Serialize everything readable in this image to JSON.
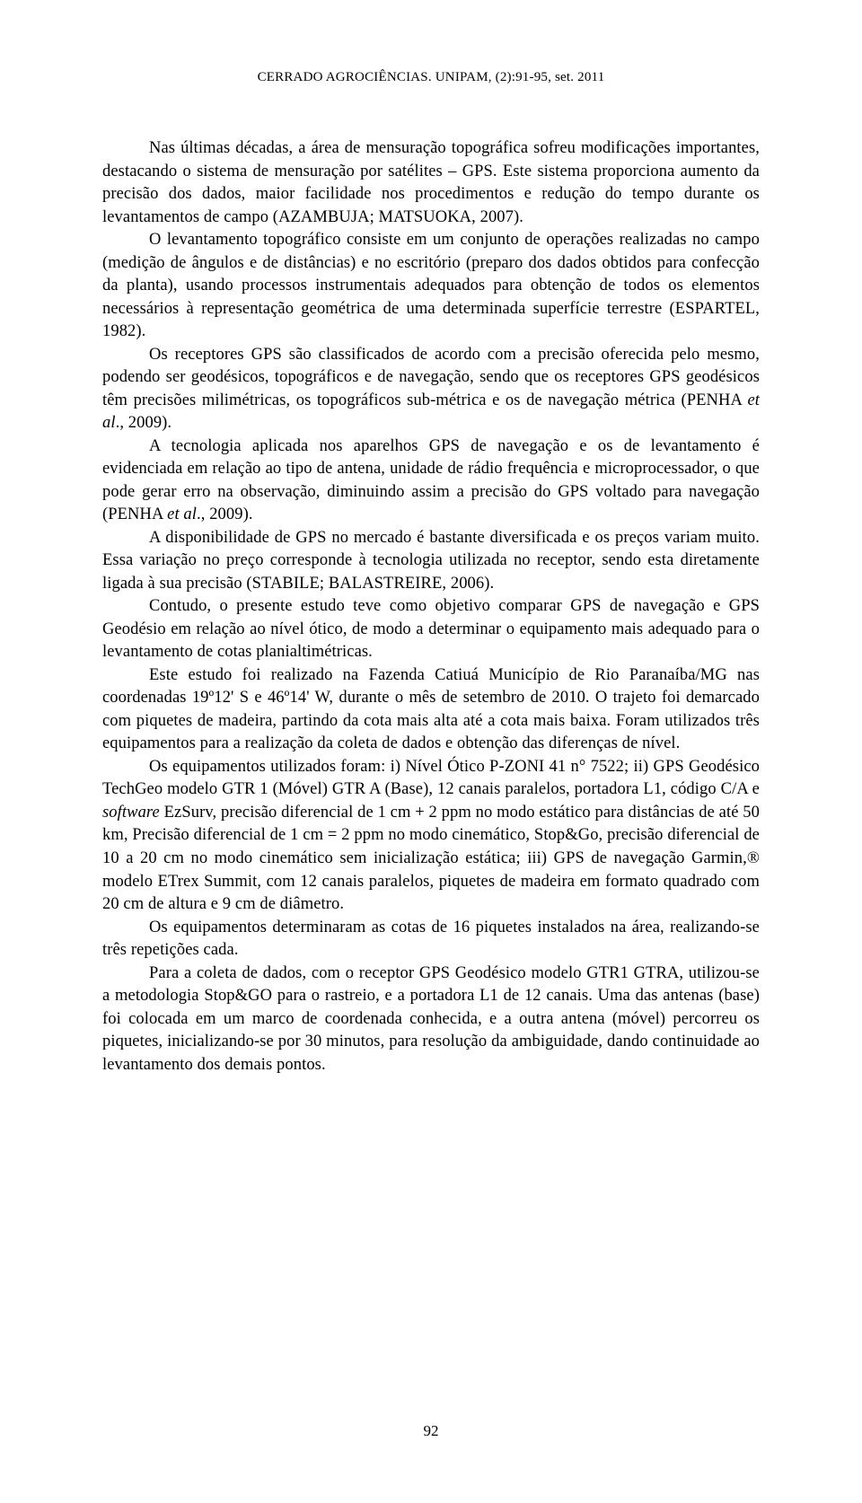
{
  "header": {
    "text": "CERRADO AGROCIÊNCIAS. UNIPAM, (2):91-95, set. 2011"
  },
  "paragraphs": {
    "p1": "Nas últimas décadas, a área de mensuração topográfica sofreu modificações importantes, destacando o sistema de mensuração por satélites – GPS. Este sistema proporciona aumento da precisão dos dados, maior facilidade nos procedimentos e redução do tempo durante os levantamentos de campo (AZAMBUJA; MATSUOKA, 2007).",
    "p2": "O levantamento topográfico consiste em um conjunto de operações realizadas no campo (medição de ângulos e de distâncias) e no escritório (preparo dos dados obtidos para confecção da planta), usando processos instrumentais adequados para obtenção de todos os elementos necessários à representação geométrica de uma determinada superfície terrestre (ESPARTEL, 1982).",
    "p3_part1": "Os receptores GPS são classificados de acordo com a precisão oferecida pelo mesmo, podendo ser geodésicos, topográficos e de navegação, sendo que os receptores GPS geodésicos têm precisões milimétricas, os topográficos sub-métrica e os de navegação métrica (PENHA ",
    "p3_italic": "et al",
    "p3_part2": "., 2009).",
    "p4_part1": "A tecnologia aplicada nos aparelhos GPS de navegação e os de levantamento é evidenciada em relação ao tipo de antena, unidade de rádio frequência e microprocessador, o que pode gerar erro na observação, diminuindo assim a precisão do GPS voltado para navegação (PENHA ",
    "p4_italic": "et al",
    "p4_part2": "., 2009).",
    "p5": "A disponibilidade de GPS no mercado é bastante diversificada e os preços variam muito. Essa variação no preço corresponde à tecnologia utilizada no receptor, sendo esta diretamente ligada à sua precisão (STABILE; BALASTREIRE, 2006).",
    "p6": "Contudo, o presente estudo teve como objetivo comparar GPS de navegação e GPS Geodésio em relação ao nível ótico, de modo a determinar o equipamento mais adequado para o levantamento de cotas planialtimétricas.",
    "p7": "Este estudo foi realizado na Fazenda Catiuá Município de Rio Paranaíba/MG nas coordenadas 19º12' S e 46º14' W, durante o mês de setembro de 2010. O trajeto foi demarcado com piquetes de madeira, partindo da cota mais alta até a cota mais baixa. Foram utilizados três equipamentos para a realização da coleta de dados e obtenção das diferenças de nível.",
    "p8_part1": "Os equipamentos utilizados foram: i) Nível Ótico P-ZONI 41 n° 7522; ii) GPS Geodésico TechGeo modelo GTR 1 (Móvel) GTR A (Base), 12 canais paralelos, portadora L1, código C/A e ",
    "p8_italic": "software",
    "p8_part2": " EzSurv, precisão diferencial de 1 cm + 2 ppm no modo estático para distâncias de até 50 km, Precisão diferencial de 1 cm = 2 ppm no modo cinemático, Stop&Go, precisão diferencial de 10 a 20 cm no modo cinemático sem inicialização estática; iii) GPS de navegação Garmin,® modelo ETrex Summit, com 12 canais paralelos, piquetes de madeira em formato quadrado com 20 cm de altura e 9 cm de diâmetro.",
    "p9": "Os equipamentos determinaram as cotas de 16 piquetes instalados na área, realizando-se três repetições cada.",
    "p10": "Para a coleta de dados, com o receptor GPS Geodésico modelo GTR1 GTRA, utilizou-se a metodologia Stop&GO para o rastreio, e a portadora L1 de 12 canais. Uma das antenas (base) foi colocada em um marco de coordenada conhecida, e a outra antena (móvel) percorreu os piquetes, inicializando-se por 30 minutos, para resolução da ambiguidade, dando continuidade ao levantamento dos demais pontos."
  },
  "page_number": "92"
}
